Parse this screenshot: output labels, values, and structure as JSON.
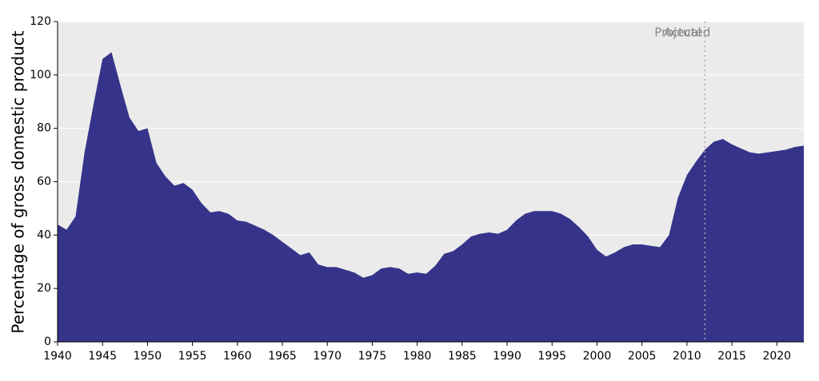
{
  "chart_data": {
    "type": "area",
    "y_label": "Percentage of gross domestic product",
    "annotations": [
      "Actual",
      "Projected"
    ],
    "divider_x": 2012,
    "x": [
      1940,
      1941,
      1942,
      1943,
      1944,
      1945,
      1946,
      1947,
      1948,
      1949,
      1950,
      1951,
      1952,
      1953,
      1954,
      1955,
      1956,
      1957,
      1958,
      1959,
      1960,
      1961,
      1962,
      1963,
      1964,
      1965,
      1966,
      1967,
      1968,
      1969,
      1970,
      1971,
      1972,
      1973,
      1974,
      1975,
      1976,
      1977,
      1978,
      1979,
      1980,
      1981,
      1982,
      1983,
      1984,
      1985,
      1986,
      1987,
      1988,
      1989,
      1990,
      1991,
      1992,
      1993,
      1994,
      1995,
      1996,
      1997,
      1998,
      1999,
      2000,
      2001,
      2002,
      2003,
      2004,
      2005,
      2006,
      2007,
      2008,
      2009,
      2010,
      2011,
      2012,
      2013,
      2014,
      2015,
      2016,
      2017,
      2018,
      2019,
      2020,
      2021,
      2022,
      2023
    ],
    "series": [
      {
        "color": "#35348a",
        "values": [
          44,
          42,
          47,
          71,
          89,
          106,
          108.5,
          96,
          84,
          79,
          80,
          67,
          62,
          58.5,
          59.5,
          57,
          52,
          48.5,
          49,
          48,
          45.5,
          45,
          43.5,
          42,
          40,
          37.5,
          35,
          32.5,
          33.5,
          29,
          28,
          28,
          27,
          26,
          24,
          25,
          27.5,
          28,
          27.5,
          25.5,
          26,
          25.5,
          28.5,
          33,
          34,
          36.5,
          39.5,
          40.5,
          41,
          40.5,
          42,
          45.5,
          48,
          49,
          49,
          49,
          48,
          46,
          43,
          39.5,
          34.5,
          32,
          33.5,
          35.5,
          36.5,
          36.5,
          36,
          35.5,
          40,
          54,
          62.5,
          67.5,
          72,
          75,
          76,
          74,
          72.5,
          71,
          70.5,
          71,
          71.5,
          72,
          73,
          73.5
        ]
      }
    ],
    "xlim": [
      1940,
      2023
    ],
    "ylim": [
      0,
      120
    ],
    "xticks": [
      1940,
      1945,
      1950,
      1955,
      1960,
      1965,
      1970,
      1975,
      1980,
      1985,
      1990,
      1995,
      2000,
      2005,
      2010,
      2015,
      2020
    ],
    "yticks": [
      0,
      20,
      40,
      60,
      80,
      100,
      120
    ],
    "grid": true
  }
}
